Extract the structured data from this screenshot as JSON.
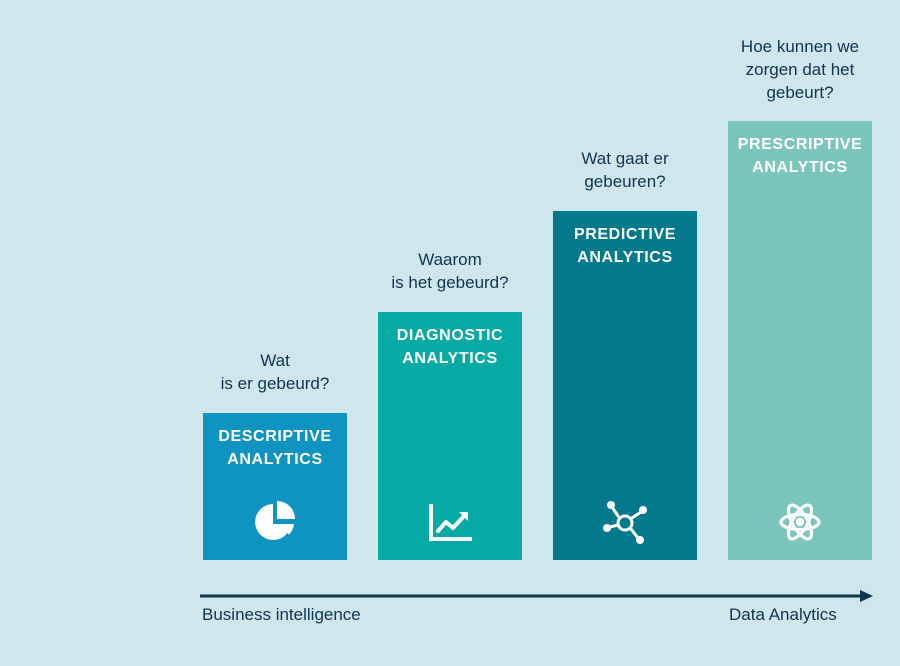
{
  "stages": [
    {
      "question": "Wat\nis er gebeurd?",
      "label": "DESCRIPTIVE\nANALYTICS",
      "icon": "pie-chart-icon",
      "color": "#0f93c0"
    },
    {
      "question": "Waarom\nis het gebeurd?",
      "label": "DIAGNOSTIC\nANALYTICS",
      "icon": "trend-chart-icon",
      "color": "#06aaa5"
    },
    {
      "question": "Wat gaat er\ngebeuren?",
      "label": "PREDICTIVE\nANALYTICS",
      "icon": "network-nodes-icon",
      "color": "#027a8c"
    },
    {
      "question": "Hoe kunnen we\nzorgen dat het\ngebeurt?",
      "label": "PRESCRIPTIVE\nANALYTICS",
      "icon": "atom-icon",
      "color": "#7cc5bd"
    }
  ],
  "axis": {
    "start_label": "Business intelligence",
    "end_label": "Data Analytics",
    "color": "#0f3550"
  },
  "background": "#cfe6ec"
}
